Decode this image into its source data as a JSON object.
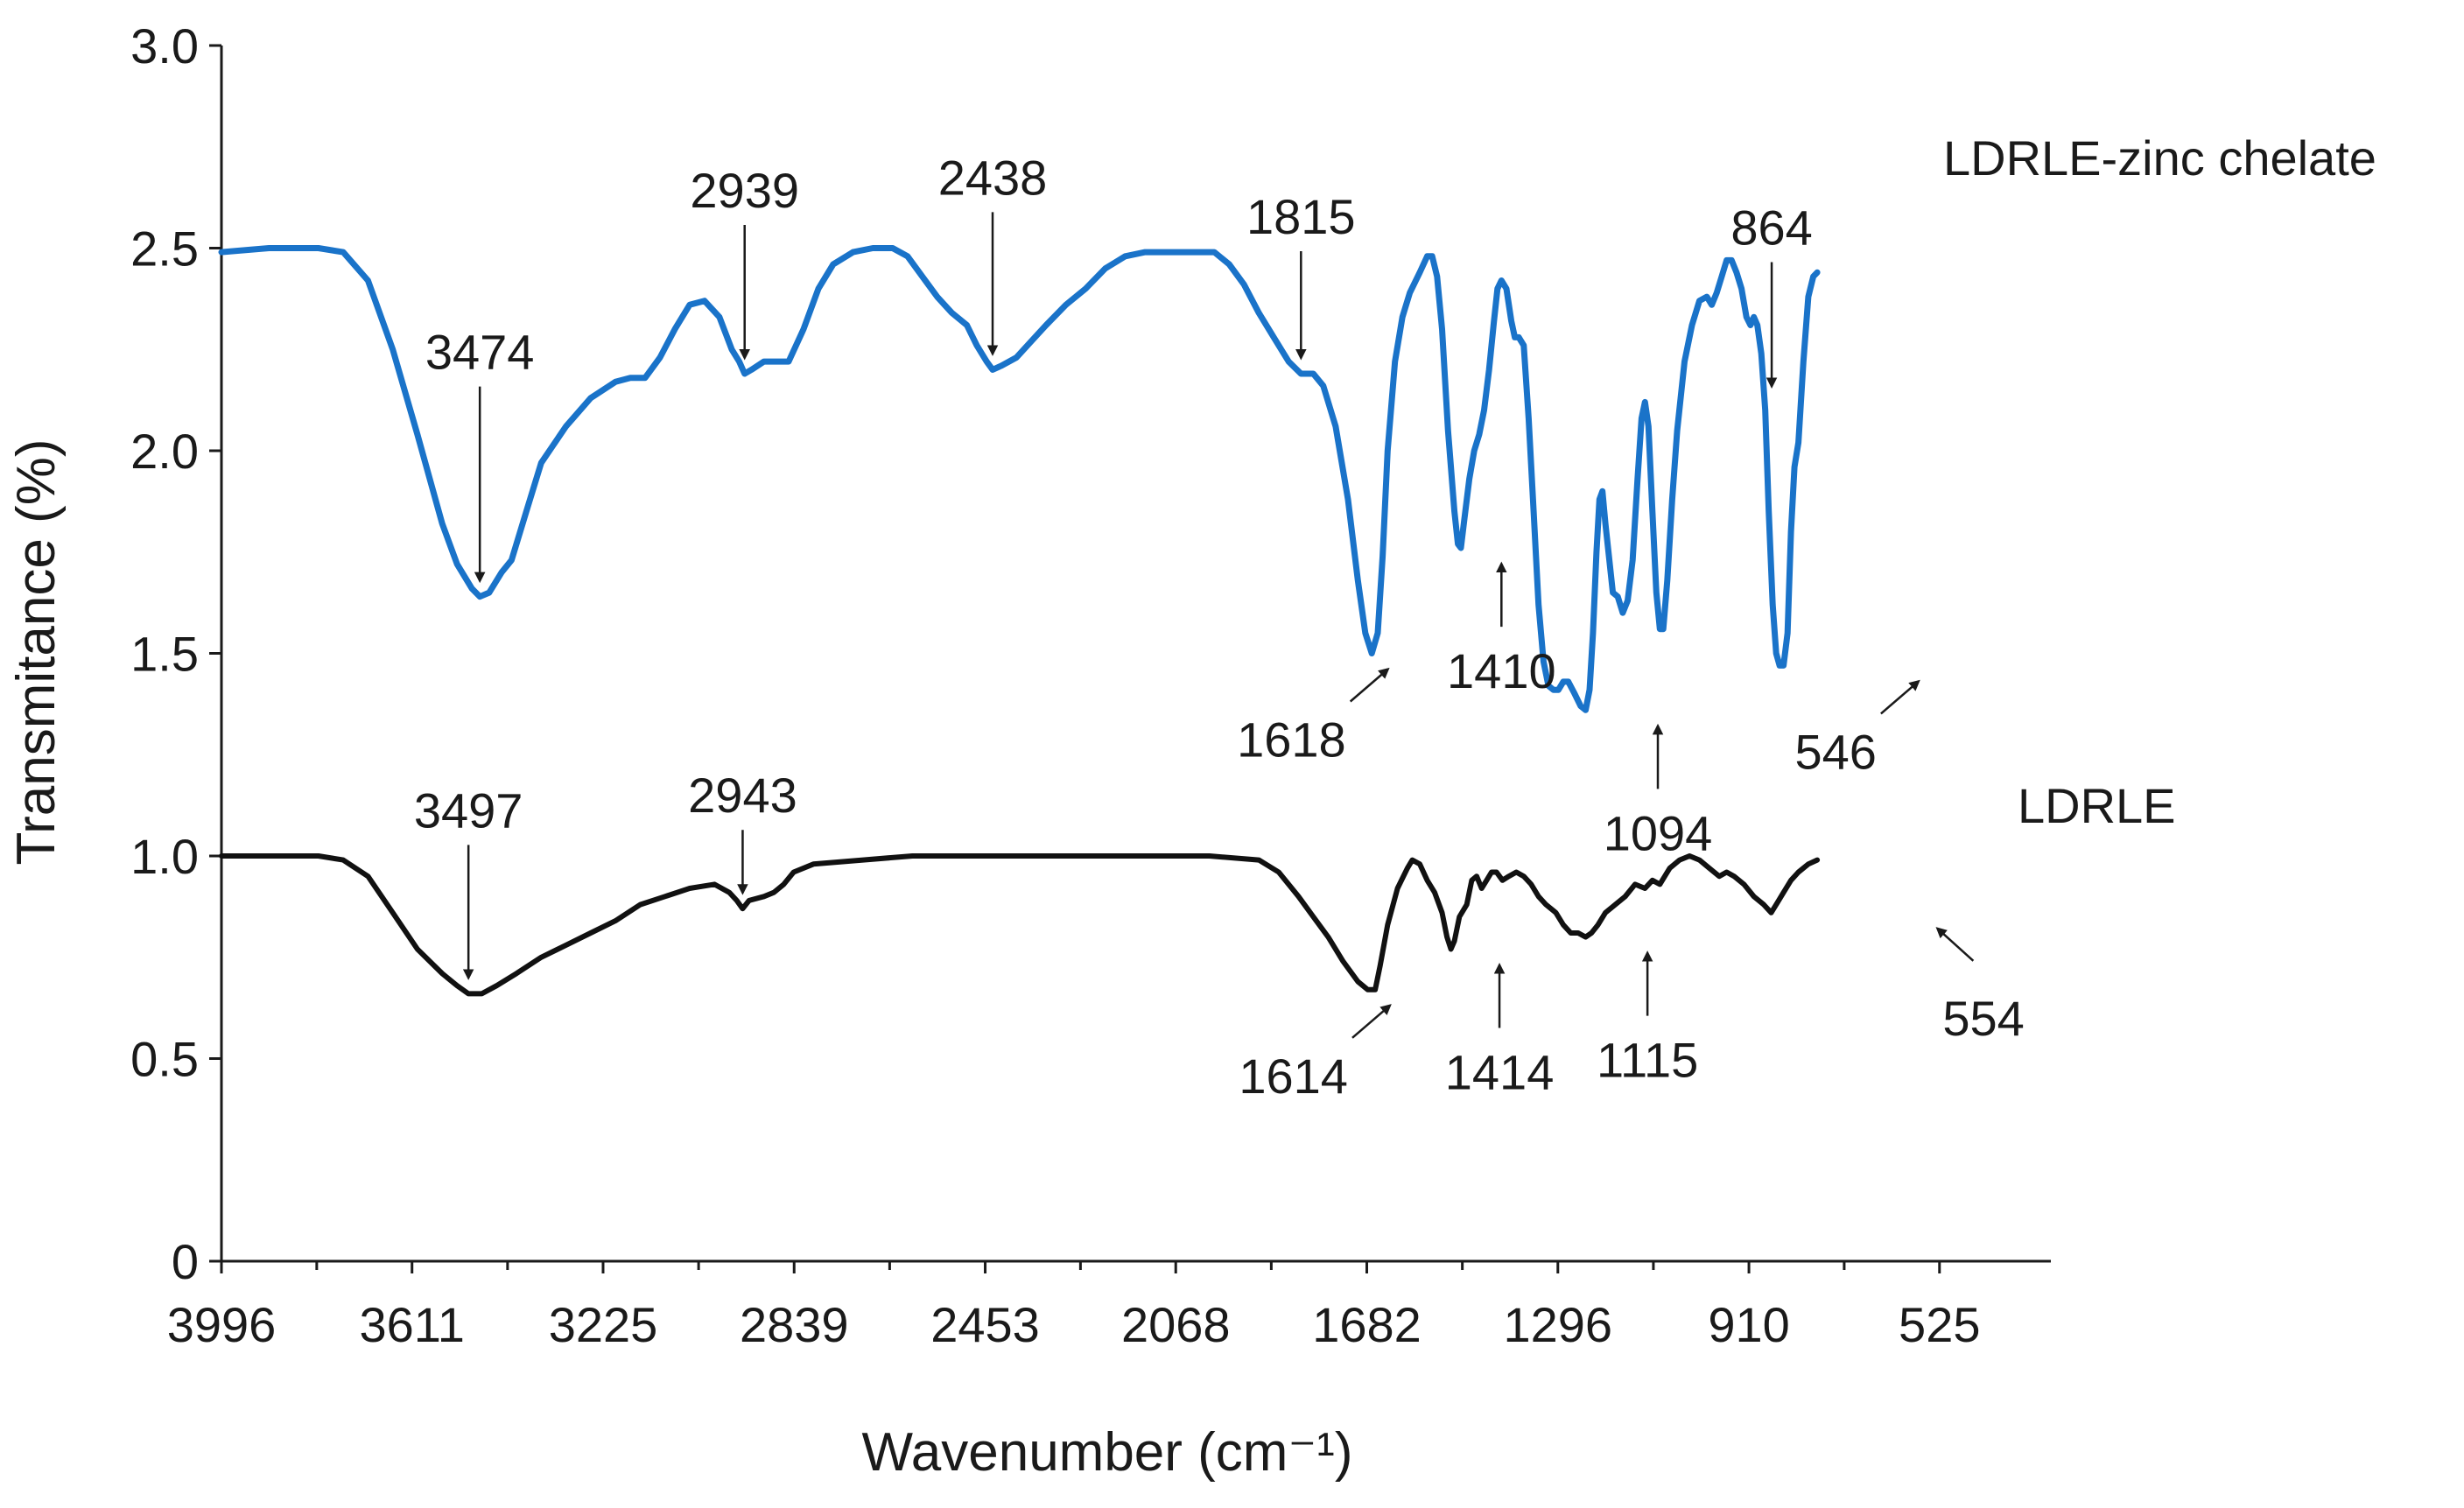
{
  "chart_data": {
    "type": "line",
    "title": "",
    "xlabel": "Wavenumber (cm⁻¹)",
    "ylabel": "Transmitance (%)",
    "xlim": [
      3996,
      300
    ],
    "ylim": [
      0,
      3.0
    ],
    "x_reversed": true,
    "x_ticks": [
      3996,
      3611,
      3225,
      2839,
      2453,
      2068,
      1682,
      1296,
      910,
      525
    ],
    "y_ticks": [
      0,
      0.5,
      1.0,
      1.5,
      2.0,
      2.5,
      3.0
    ],
    "y_tick_labels": [
      "0",
      "0.5",
      "1.0",
      "1.5",
      "2.0",
      "2.5",
      "3.0"
    ],
    "grid": false,
    "colors": {
      "zinc": "#1a73c9",
      "ldrle": "#111111"
    },
    "series": [
      {
        "name": "LDRLE-zinc chelate",
        "color": "#1a73c9",
        "points": [
          [
            3996,
            2.49
          ],
          [
            3900,
            2.5
          ],
          [
            3800,
            2.5
          ],
          [
            3750,
            2.49
          ],
          [
            3700,
            2.42
          ],
          [
            3650,
            2.25
          ],
          [
            3600,
            2.04
          ],
          [
            3550,
            1.82
          ],
          [
            3520,
            1.72
          ],
          [
            3490,
            1.66
          ],
          [
            3474,
            1.64
          ],
          [
            3455,
            1.65
          ],
          [
            3430,
            1.7
          ],
          [
            3410,
            1.73
          ],
          [
            3380,
            1.85
          ],
          [
            3350,
            1.97
          ],
          [
            3300,
            2.06
          ],
          [
            3250,
            2.13
          ],
          [
            3200,
            2.17
          ],
          [
            3170,
            2.18
          ],
          [
            3140,
            2.18
          ],
          [
            3110,
            2.23
          ],
          [
            3080,
            2.3
          ],
          [
            3050,
            2.36
          ],
          [
            3020,
            2.37
          ],
          [
            2990,
            2.33
          ],
          [
            2965,
            2.25
          ],
          [
            2950,
            2.22
          ],
          [
            2939,
            2.19
          ],
          [
            2925,
            2.2
          ],
          [
            2900,
            2.22
          ],
          [
            2870,
            2.22
          ],
          [
            2850,
            2.22
          ],
          [
            2820,
            2.3
          ],
          [
            2790,
            2.4
          ],
          [
            2760,
            2.46
          ],
          [
            2720,
            2.49
          ],
          [
            2680,
            2.5
          ],
          [
            2640,
            2.5
          ],
          [
            2610,
            2.48
          ],
          [
            2580,
            2.43
          ],
          [
            2550,
            2.38
          ],
          [
            2520,
            2.34
          ],
          [
            2490,
            2.31
          ],
          [
            2470,
            2.26
          ],
          [
            2450,
            2.22
          ],
          [
            2438,
            2.2
          ],
          [
            2420,
            2.21
          ],
          [
            2390,
            2.23
          ],
          [
            2360,
            2.27
          ],
          [
            2330,
            2.31
          ],
          [
            2290,
            2.36
          ],
          [
            2250,
            2.4
          ],
          [
            2210,
            2.45
          ],
          [
            2170,
            2.48
          ],
          [
            2130,
            2.49
          ],
          [
            2080,
            2.49
          ],
          [
            2030,
            2.49
          ],
          [
            1990,
            2.49
          ],
          [
            1960,
            2.46
          ],
          [
            1930,
            2.41
          ],
          [
            1900,
            2.34
          ],
          [
            1870,
            2.28
          ],
          [
            1840,
            2.22
          ],
          [
            1815,
            2.19
          ],
          [
            1790,
            2.19
          ],
          [
            1770,
            2.16
          ],
          [
            1745,
            2.06
          ],
          [
            1720,
            1.88
          ],
          [
            1700,
            1.68
          ],
          [
            1685,
            1.55
          ],
          [
            1672,
            1.5
          ],
          [
            1660,
            1.55
          ],
          [
            1650,
            1.74
          ],
          [
            1640,
            2.0
          ],
          [
            1625,
            2.22
          ],
          [
            1610,
            2.33
          ],
          [
            1595,
            2.39
          ],
          [
            1575,
            2.44
          ],
          [
            1560,
            2.48
          ],
          [
            1550,
            2.48
          ],
          [
            1540,
            2.43
          ],
          [
            1530,
            2.3
          ],
          [
            1518,
            2.05
          ],
          [
            1505,
            1.85
          ],
          [
            1498,
            1.77
          ],
          [
            1492,
            1.76
          ],
          [
            1485,
            1.83
          ],
          [
            1475,
            1.93
          ],
          [
            1465,
            2.0
          ],
          [
            1455,
            2.04
          ],
          [
            1445,
            2.1
          ],
          [
            1435,
            2.2
          ],
          [
            1425,
            2.32
          ],
          [
            1418,
            2.4
          ],
          [
            1410,
            2.42
          ],
          [
            1400,
            2.4
          ],
          [
            1390,
            2.32
          ],
          [
            1383,
            2.28
          ],
          [
            1375,
            2.28
          ],
          [
            1365,
            2.26
          ],
          [
            1355,
            2.08
          ],
          [
            1345,
            1.85
          ],
          [
            1335,
            1.62
          ],
          [
            1325,
            1.48
          ],
          [
            1315,
            1.42
          ],
          [
            1305,
            1.41
          ],
          [
            1295,
            1.41
          ],
          [
            1285,
            1.43
          ],
          [
            1275,
            1.43
          ],
          [
            1262,
            1.4
          ],
          [
            1250,
            1.37
          ],
          [
            1240,
            1.36
          ],
          [
            1232,
            1.41
          ],
          [
            1225,
            1.55
          ],
          [
            1218,
            1.75
          ],
          [
            1212,
            1.88
          ],
          [
            1206,
            1.9
          ],
          [
            1200,
            1.82
          ],
          [
            1192,
            1.73
          ],
          [
            1185,
            1.65
          ],
          [
            1175,
            1.64
          ],
          [
            1165,
            1.6
          ],
          [
            1155,
            1.63
          ],
          [
            1145,
            1.73
          ],
          [
            1135,
            1.93
          ],
          [
            1127,
            2.08
          ],
          [
            1120,
            2.12
          ],
          [
            1113,
            2.06
          ],
          [
            1105,
            1.85
          ],
          [
            1097,
            1.65
          ],
          [
            1090,
            1.56
          ],
          [
            1083,
            1.56
          ],
          [
            1075,
            1.68
          ],
          [
            1065,
            1.88
          ],
          [
            1055,
            2.05
          ],
          [
            1040,
            2.22
          ],
          [
            1025,
            2.31
          ],
          [
            1010,
            2.37
          ],
          [
            995,
            2.38
          ],
          [
            985,
            2.36
          ],
          [
            975,
            2.39
          ],
          [
            965,
            2.43
          ],
          [
            955,
            2.47
          ],
          [
            945,
            2.47
          ],
          [
            935,
            2.44
          ],
          [
            925,
            2.4
          ],
          [
            915,
            2.33
          ],
          [
            907,
            2.31
          ],
          [
            900,
            2.33
          ],
          [
            893,
            2.31
          ],
          [
            885,
            2.24
          ],
          [
            877,
            2.1
          ],
          [
            870,
            1.85
          ],
          [
            862,
            1.62
          ],
          [
            855,
            1.5
          ],
          [
            848,
            1.47
          ],
          [
            840,
            1.47
          ],
          [
            832,
            1.55
          ],
          [
            825,
            1.8
          ],
          [
            818,
            1.96
          ],
          [
            810,
            2.02
          ],
          [
            800,
            2.22
          ],
          [
            790,
            2.38
          ],
          [
            780,
            2.43
          ],
          [
            772,
            2.44
          ]
        ]
      },
      {
        "name": "LDRLE",
        "color": "#111111",
        "points": [
          [
            3996,
            1.0
          ],
          [
            3900,
            1.0
          ],
          [
            3800,
            1.0
          ],
          [
            3750,
            0.99
          ],
          [
            3700,
            0.95
          ],
          [
            3650,
            0.86
          ],
          [
            3600,
            0.77
          ],
          [
            3550,
            0.71
          ],
          [
            3520,
            0.68
          ],
          [
            3497,
            0.66
          ],
          [
            3470,
            0.66
          ],
          [
            3440,
            0.68
          ],
          [
            3400,
            0.71
          ],
          [
            3350,
            0.75
          ],
          [
            3300,
            0.78
          ],
          [
            3250,
            0.81
          ],
          [
            3200,
            0.84
          ],
          [
            3150,
            0.88
          ],
          [
            3100,
            0.9
          ],
          [
            3050,
            0.92
          ],
          [
            3000,
            0.93
          ],
          [
            2970,
            0.91
          ],
          [
            2955,
            0.89
          ],
          [
            2943,
            0.87
          ],
          [
            2930,
            0.89
          ],
          [
            2900,
            0.9
          ],
          [
            2880,
            0.91
          ],
          [
            2860,
            0.93
          ],
          [
            2840,
            0.96
          ],
          [
            2800,
            0.98
          ],
          [
            2700,
            0.99
          ],
          [
            2600,
            1.0
          ],
          [
            2400,
            1.0
          ],
          [
            2200,
            1.0
          ],
          [
            2000,
            1.0
          ],
          [
            1900,
            0.99
          ],
          [
            1860,
            0.96
          ],
          [
            1820,
            0.9
          ],
          [
            1790,
            0.85
          ],
          [
            1760,
            0.8
          ],
          [
            1730,
            0.74
          ],
          [
            1700,
            0.69
          ],
          [
            1680,
            0.67
          ],
          [
            1665,
            0.67
          ],
          [
            1655,
            0.73
          ],
          [
            1640,
            0.83
          ],
          [
            1620,
            0.92
          ],
          [
            1600,
            0.97
          ],
          [
            1590,
            0.99
          ],
          [
            1575,
            0.98
          ],
          [
            1560,
            0.94
          ],
          [
            1545,
            0.91
          ],
          [
            1530,
            0.86
          ],
          [
            1520,
            0.8
          ],
          [
            1512,
            0.77
          ],
          [
            1505,
            0.79
          ],
          [
            1495,
            0.85
          ],
          [
            1480,
            0.88
          ],
          [
            1470,
            0.94
          ],
          [
            1460,
            0.95
          ],
          [
            1450,
            0.92
          ],
          [
            1440,
            0.94
          ],
          [
            1430,
            0.96
          ],
          [
            1420,
            0.96
          ],
          [
            1408,
            0.94
          ],
          [
            1395,
            0.95
          ],
          [
            1380,
            0.96
          ],
          [
            1365,
            0.95
          ],
          [
            1350,
            0.93
          ],
          [
            1335,
            0.9
          ],
          [
            1320,
            0.88
          ],
          [
            1300,
            0.86
          ],
          [
            1285,
            0.83
          ],
          [
            1270,
            0.81
          ],
          [
            1255,
            0.81
          ],
          [
            1240,
            0.8
          ],
          [
            1228,
            0.81
          ],
          [
            1215,
            0.83
          ],
          [
            1200,
            0.86
          ],
          [
            1180,
            0.88
          ],
          [
            1160,
            0.9
          ],
          [
            1140,
            0.93
          ],
          [
            1120,
            0.92
          ],
          [
            1105,
            0.94
          ],
          [
            1090,
            0.93
          ],
          [
            1070,
            0.97
          ],
          [
            1050,
            0.99
          ],
          [
            1030,
            1.0
          ],
          [
            1010,
            0.99
          ],
          [
            990,
            0.97
          ],
          [
            970,
            0.95
          ],
          [
            955,
            0.96
          ],
          [
            940,
            0.95
          ],
          [
            920,
            0.93
          ],
          [
            900,
            0.9
          ],
          [
            880,
            0.88
          ],
          [
            865,
            0.86
          ],
          [
            855,
            0.88
          ],
          [
            840,
            0.91
          ],
          [
            825,
            0.94
          ],
          [
            810,
            0.96
          ],
          [
            790,
            0.98
          ],
          [
            772,
            0.99
          ]
        ]
      }
    ],
    "series_labels": [
      "LDRLE-zinc chelate",
      "LDRLE"
    ],
    "annotations": [
      {
        "label": "3474",
        "series": "LDRLE-zinc chelate",
        "x": 3474,
        "y": 1.64
      },
      {
        "label": "2939",
        "series": "LDRLE-zinc chelate",
        "x": 2939,
        "y": 2.19
      },
      {
        "label": "2438",
        "series": "LDRLE-zinc chelate",
        "x": 2438,
        "y": 2.2
      },
      {
        "label": "1815",
        "series": "LDRLE-zinc chelate",
        "x": 1815,
        "y": 2.19
      },
      {
        "label": "1618",
        "series": "LDRLE-zinc chelate",
        "x": 1618,
        "y": 1.5
      },
      {
        "label": "1410",
        "series": "LDRLE-zinc chelate",
        "x": 1410,
        "y": 1.76
      },
      {
        "label": "1094",
        "series": "LDRLE-zinc chelate",
        "x": 1094,
        "y": 1.36
      },
      {
        "label": "864",
        "series": "LDRLE-zinc chelate",
        "x": 864,
        "y": 2.12
      },
      {
        "label": "546",
        "series": "LDRLE-zinc chelate",
        "x": 546,
        "y": 1.47
      },
      {
        "label": "3497",
        "series": "LDRLE",
        "x": 3497,
        "y": 0.66
      },
      {
        "label": "2943",
        "series": "LDRLE",
        "x": 2943,
        "y": 0.87
      },
      {
        "label": "1614",
        "series": "LDRLE",
        "x": 1614,
        "y": 0.67
      },
      {
        "label": "1414",
        "series": "LDRLE",
        "x": 1414,
        "y": 0.77
      },
      {
        "label": "1115",
        "series": "LDRLE",
        "x": 1115,
        "y": 0.8
      },
      {
        "label": "554",
        "series": "LDRLE",
        "x": 554,
        "y": 0.86
      }
    ]
  }
}
